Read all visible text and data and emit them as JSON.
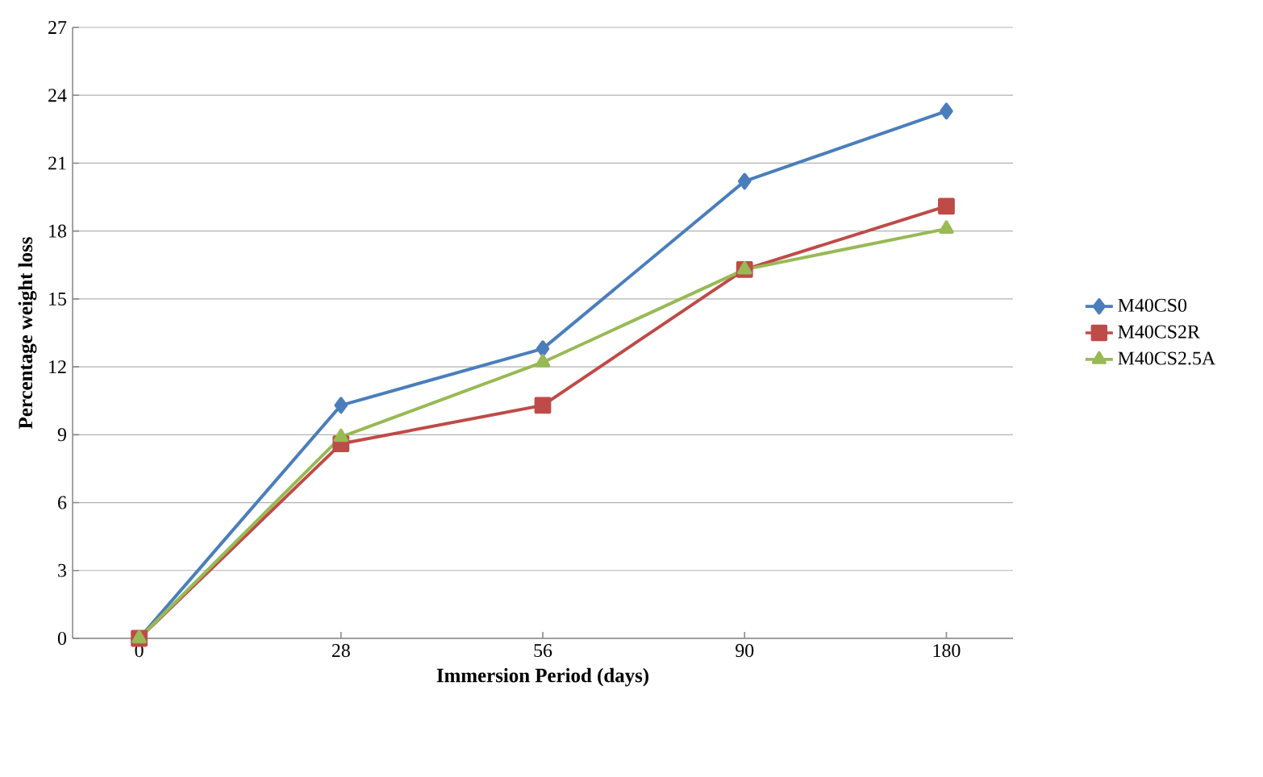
{
  "chart_data": {
    "type": "line",
    "xlabel": "Immersion Period (days)",
    "ylabel": "Percentage weight loss",
    "categories": [
      "0",
      "28",
      "56",
      "90",
      "180"
    ],
    "series": [
      {
        "name": "M40CS0",
        "color": "#4a7ebb",
        "marker": "diamond",
        "values": [
          0,
          10.3,
          12.8,
          20.2,
          23.3
        ]
      },
      {
        "name": "M40CS2R",
        "color": "#be4b48",
        "marker": "square",
        "values": [
          0,
          8.6,
          10.3,
          16.3,
          19.1
        ]
      },
      {
        "name": "M40CS2.5A",
        "color": "#98b954",
        "marker": "triangle",
        "values": [
          0,
          8.9,
          12.2,
          16.3,
          18.1
        ]
      }
    ],
    "ylim": [
      0,
      27
    ],
    "yticks": [
      0,
      3,
      6,
      9,
      12,
      15,
      18,
      21,
      24,
      27
    ],
    "grid": "y",
    "legend": "right",
    "line_style": "solid"
  }
}
